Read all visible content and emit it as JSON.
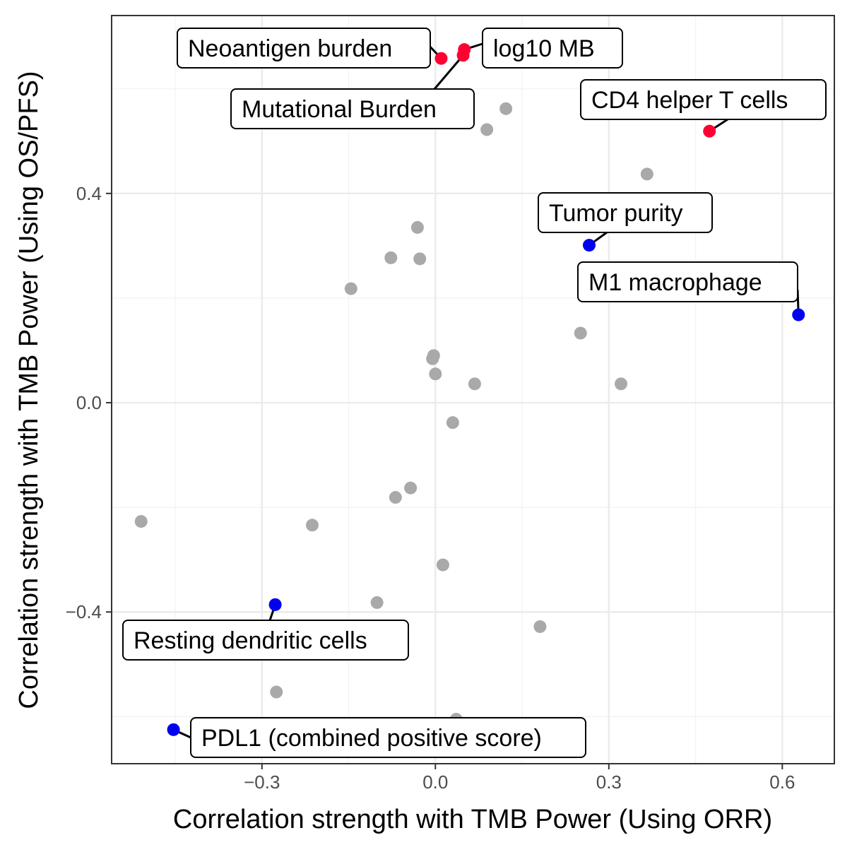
{
  "chart_data": {
    "type": "scatter",
    "title": "",
    "xlabel": "Correlation strength with TMB Power (Using ORR)",
    "ylabel": "Correlation strength with TMB Power (Using OS/PFS)",
    "xlim": [
      -0.56,
      0.69
    ],
    "ylim": [
      -0.69,
      0.74
    ],
    "x_ticks": [
      -0.3,
      0.0,
      0.3,
      0.6
    ],
    "x_tick_labels": [
      "−0.3",
      "0.0",
      "0.3",
      "0.6"
    ],
    "y_ticks": [
      -0.4,
      0.0,
      0.4
    ],
    "y_tick_labels": [
      "−0.4",
      "0.0",
      "0.4"
    ],
    "grid": true,
    "colors": {
      "highlight_positive": "#ff0033",
      "highlight_negative": "#0000ee",
      "other": "#a9a9a9"
    },
    "points": [
      {
        "x": 0.122,
        "y": 0.562,
        "group": "other"
      },
      {
        "x": 0.089,
        "y": 0.522,
        "group": "other"
      },
      {
        "x": 0.366,
        "y": 0.437,
        "group": "other"
      },
      {
        "x": -0.031,
        "y": 0.335,
        "group": "other"
      },
      {
        "x": -0.077,
        "y": 0.277,
        "group": "other"
      },
      {
        "x": -0.027,
        "y": 0.275,
        "group": "other"
      },
      {
        "x": -0.146,
        "y": 0.218,
        "group": "other"
      },
      {
        "x": 0.251,
        "y": 0.133,
        "group": "other"
      },
      {
        "x": -0.003,
        "y": 0.09,
        "group": "other"
      },
      {
        "x": -0.005,
        "y": 0.084,
        "group": "other"
      },
      {
        "x": 0.0,
        "y": 0.055,
        "group": "other"
      },
      {
        "x": 0.068,
        "y": 0.036,
        "group": "other"
      },
      {
        "x": 0.321,
        "y": 0.036,
        "group": "other"
      },
      {
        "x": 0.03,
        "y": -0.038,
        "group": "other"
      },
      {
        "x": -0.043,
        "y": -0.163,
        "group": "other"
      },
      {
        "x": -0.069,
        "y": -0.181,
        "group": "other"
      },
      {
        "x": -0.509,
        "y": -0.227,
        "group": "other"
      },
      {
        "x": -0.213,
        "y": -0.234,
        "group": "other"
      },
      {
        "x": 0.013,
        "y": -0.31,
        "group": "other"
      },
      {
        "x": -0.101,
        "y": -0.382,
        "group": "other"
      },
      {
        "x": 0.181,
        "y": -0.428,
        "group": "other"
      },
      {
        "x": -0.275,
        "y": -0.553,
        "group": "other"
      },
      {
        "x": 0.036,
        "y": -0.605,
        "group": "other"
      },
      {
        "x": 0.01,
        "y": 0.658,
        "group": "positive",
        "label": "Neoantigen burden"
      },
      {
        "x": 0.05,
        "y": 0.675,
        "group": "positive",
        "label": "log10 MB"
      },
      {
        "x": 0.048,
        "y": 0.664,
        "group": "positive",
        "label": "Mutational Burden"
      },
      {
        "x": 0.474,
        "y": 0.519,
        "group": "positive",
        "label": "CD4 helper T cells"
      },
      {
        "x": 0.266,
        "y": 0.301,
        "group": "negative",
        "label": "Tumor purity"
      },
      {
        "x": 0.628,
        "y": 0.168,
        "group": "negative",
        "label": "M1 macrophage"
      },
      {
        "x": -0.277,
        "y": -0.386,
        "group": "negative",
        "label": "Resting dendritic cells"
      },
      {
        "x": -0.453,
        "y": -0.625,
        "group": "negative",
        "label": "PDL1 (combined positive score)"
      }
    ],
    "annotations": [
      {
        "text": "Neoantigen burden",
        "target": 23
      },
      {
        "text": "log10 MB",
        "target": 24
      },
      {
        "text": "Mutational Burden",
        "target": 25
      },
      {
        "text": "CD4 helper T cells",
        "target": 26
      },
      {
        "text": "Tumor purity",
        "target": 27
      },
      {
        "text": "M1 macrophage",
        "target": 28
      },
      {
        "text": "Resting dendritic cells",
        "target": 29
      },
      {
        "text": "PDL1 (combined positive score)",
        "target": 30
      }
    ]
  }
}
